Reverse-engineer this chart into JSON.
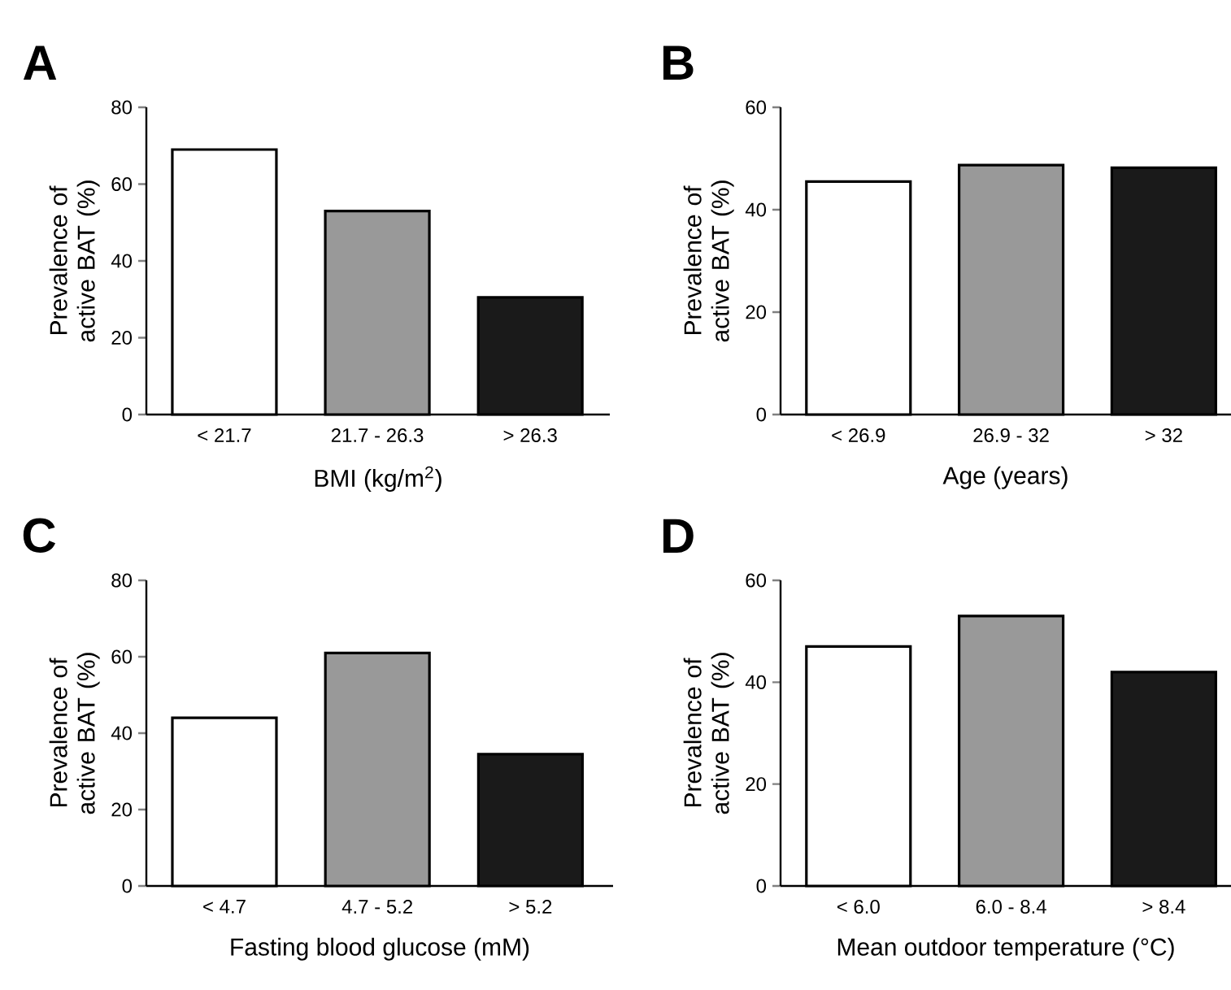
{
  "chart_data": [
    {
      "type": "bar",
      "title": "A",
      "xlabel": "BMI (kg/m$^{2}$)",
      "ylabel": "Prevalence of active BAT (%)",
      "categories": [
        "< 21.7",
        "21.7 - 26.3",
        "> 26.3"
      ],
      "values": [
        69,
        53,
        30.5
      ],
      "colors": [
        "#ffffff",
        "#999999",
        "#1a1a1a"
      ],
      "ylim": [
        0,
        80
      ],
      "yticks": [
        0,
        20,
        40,
        60,
        80
      ]
    },
    {
      "type": "bar",
      "title": "B",
      "xlabel": "Age (years)",
      "ylabel": "Prevalence of active BAT (%)",
      "categories": [
        "< 26.9",
        "26.9 - 32",
        "> 32"
      ],
      "values": [
        45.5,
        48.7,
        48.2
      ],
      "colors": [
        "#ffffff",
        "#999999",
        "#1a1a1a"
      ],
      "ylim": [
        0,
        60
      ],
      "yticks": [
        0,
        20,
        40,
        60
      ]
    },
    {
      "type": "bar",
      "title": "C",
      "xlabel": "Fasting blood glucose (mM)",
      "ylabel": "Prevalence of active BAT (%)",
      "categories": [
        "< 4.7",
        "4.7 - 5.2",
        "> 5.2"
      ],
      "values": [
        44,
        61,
        34.5
      ],
      "colors": [
        "#ffffff",
        "#999999",
        "#1a1a1a"
      ],
      "ylim": [
        0,
        80
      ],
      "yticks": [
        0,
        20,
        40,
        60,
        80
      ]
    },
    {
      "type": "bar",
      "title": "D",
      "xlabel": "Mean outdoor temperature (°C)",
      "ylabel": "Prevalence of active BAT (%)",
      "categories": [
        "< 6.0",
        "6.0 - 8.4",
        "> 8.4"
      ],
      "values": [
        47,
        53,
        42
      ],
      "colors": [
        "#ffffff",
        "#999999",
        "#1a1a1a"
      ],
      "ylim": [
        0,
        60
      ],
      "yticks": [
        0,
        20,
        40,
        60
      ]
    }
  ]
}
